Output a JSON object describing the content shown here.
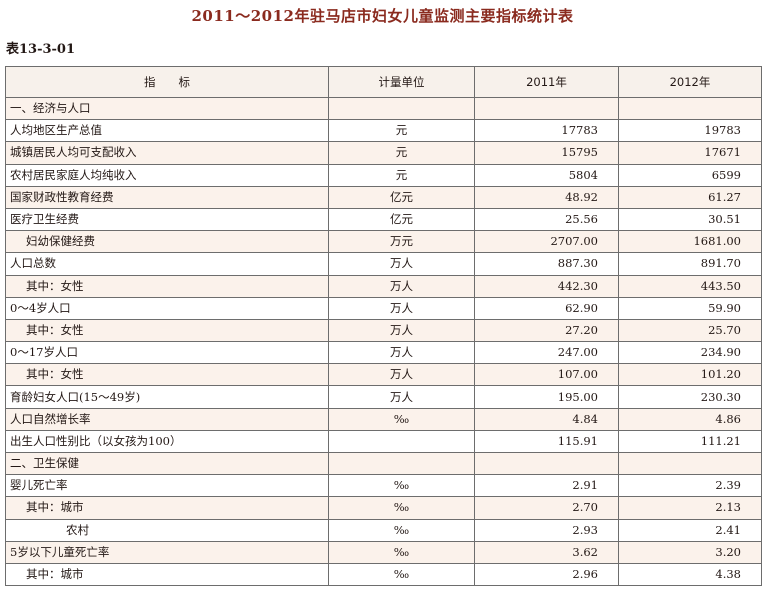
{
  "document": {
    "title": "2011～2012年驻马店市妇女儿童监测主要指标统计表",
    "table_code": "表13-3-01"
  },
  "table": {
    "headers": [
      "指　　标",
      "计量单位",
      "2011年",
      "2012年"
    ],
    "rows": [
      {
        "label": "一、经济与人口",
        "unit": "",
        "v2011": "",
        "v2012": "",
        "indent": 0
      },
      {
        "label": "人均地区生产总值",
        "unit": "元",
        "v2011": "17783",
        "v2012": "19783",
        "indent": 0
      },
      {
        "label": "城镇居民人均可支配收入",
        "unit": "元",
        "v2011": "15795",
        "v2012": "17671",
        "indent": 0
      },
      {
        "label": "农村居民家庭人均纯收入",
        "unit": "元",
        "v2011": "5804",
        "v2012": "6599",
        "indent": 0
      },
      {
        "label": "国家财政性教育经费",
        "unit": "亿元",
        "v2011": "48.92",
        "v2012": "61.27",
        "indent": 0
      },
      {
        "label": "医疗卫生经费",
        "unit": "亿元",
        "v2011": "25.56",
        "v2012": "30.51",
        "indent": 0
      },
      {
        "label": "妇幼保健经费",
        "unit": "万元",
        "v2011": "2707.00",
        "v2012": "1681.00",
        "indent": 1
      },
      {
        "label": "人口总数",
        "unit": "万人",
        "v2011": "887.30",
        "v2012": "891.70",
        "indent": 0
      },
      {
        "label": "其中：女性",
        "unit": "万人",
        "v2011": "442.30",
        "v2012": "443.50",
        "indent": 1
      },
      {
        "label": "0～4岁人口",
        "unit": "万人",
        "v2011": "62.90",
        "v2012": "59.90",
        "indent": 0
      },
      {
        "label": "其中：女性",
        "unit": "万人",
        "v2011": "27.20",
        "v2012": "25.70",
        "indent": 1
      },
      {
        "label": "0～17岁人口",
        "unit": "万人",
        "v2011": "247.00",
        "v2012": "234.90",
        "indent": 0
      },
      {
        "label": "其中：女性",
        "unit": "万人",
        "v2011": "107.00",
        "v2012": "101.20",
        "indent": 1
      },
      {
        "label": "育龄妇女人口(15～49岁)",
        "unit": "万人",
        "v2011": "195.00",
        "v2012": "230.30",
        "indent": 0
      },
      {
        "label": "人口自然增长率",
        "unit": "‰",
        "v2011": "4.84",
        "v2012": "4.86",
        "indent": 0
      },
      {
        "label": "出生人口性别比（以女孩为100）",
        "unit": "",
        "v2011": "115.91",
        "v2012": "111.21",
        "indent": 0
      },
      {
        "label": "二、卫生保健",
        "unit": "",
        "v2011": "",
        "v2012": "",
        "indent": 0
      },
      {
        "label": "婴儿死亡率",
        "unit": "‰",
        "v2011": "2.91",
        "v2012": "2.39",
        "indent": 0
      },
      {
        "label": "其中：城市",
        "unit": "‰",
        "v2011": "2.70",
        "v2012": "2.13",
        "indent": 1
      },
      {
        "label": "农村",
        "unit": "‰",
        "v2011": "2.93",
        "v2012": "2.41",
        "indent": 2
      },
      {
        "label": "5岁以下儿童死亡率",
        "unit": "‰",
        "v2011": "3.62",
        "v2012": "3.20",
        "indent": 0
      },
      {
        "label": "其中：城市",
        "unit": "‰",
        "v2011": "2.96",
        "v2012": "4.38",
        "indent": 1
      }
    ]
  },
  "colors": {
    "title": "#8a2a1e",
    "header_bg": "#f7f1eb",
    "row_band": "#fbf2eb",
    "grid": "#6d6d6d"
  }
}
